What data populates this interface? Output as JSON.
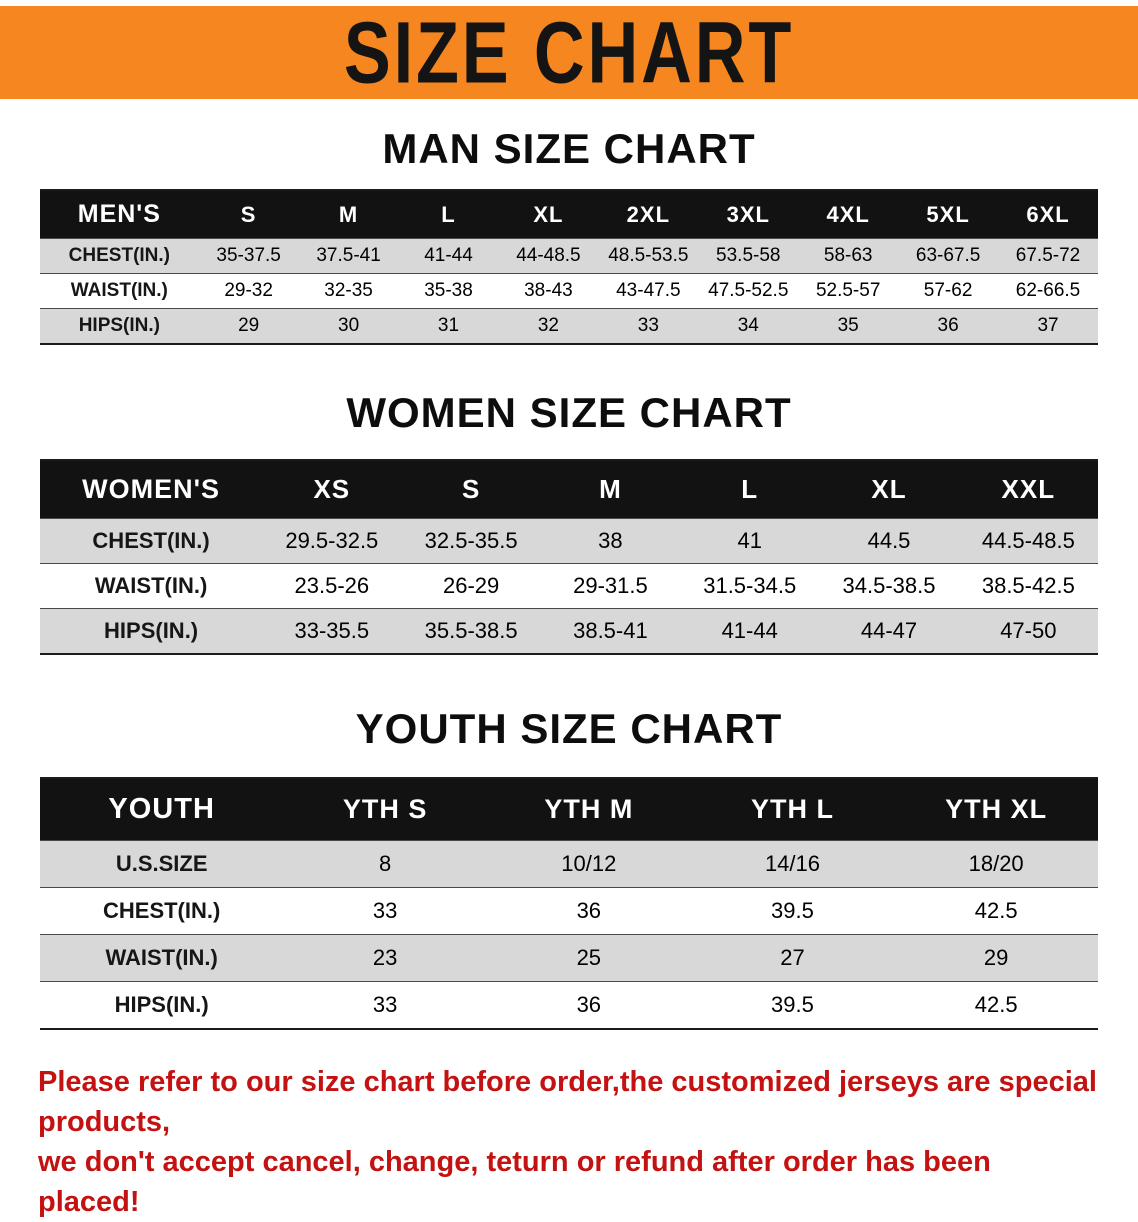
{
  "banner": {
    "title": "SIZE CHART"
  },
  "colors": {
    "banner_orange": "#f6861f",
    "table_header_black": "#121212",
    "row_stripe_gray": "#d8d8d8",
    "disclaimer_red": "#c41111"
  },
  "sections": [
    {
      "heading": "MAN SIZE CHART",
      "table": {
        "header": [
          "MEN'S",
          "S",
          "M",
          "L",
          "XL",
          "2XL",
          "3XL",
          "4XL",
          "5XL",
          "6XL"
        ],
        "rows": [
          [
            "CHEST(IN.)",
            "35-37.5",
            "37.5-41",
            "41-44",
            "44-48.5",
            "48.5-53.5",
            "53.5-58",
            "58-63",
            "63-67.5",
            "67.5-72"
          ],
          [
            "WAIST(IN.)",
            "29-32",
            "32-35",
            "35-38",
            "38-43",
            "43-47.5",
            "47.5-52.5",
            "52.5-57",
            "57-62",
            "62-66.5"
          ],
          [
            "HIPS(IN.)",
            "29",
            "30",
            "31",
            "32",
            "33",
            "34",
            "35",
            "36",
            "37"
          ]
        ]
      }
    },
    {
      "heading": "WOMEN SIZE CHART",
      "table": {
        "header": [
          "WOMEN'S",
          "XS",
          "S",
          "M",
          "L",
          "XL",
          "XXL"
        ],
        "rows": [
          [
            "CHEST(IN.)",
            "29.5-32.5",
            "32.5-35.5",
            "38",
            "41",
            "44.5",
            "44.5-48.5"
          ],
          [
            "WAIST(IN.)",
            "23.5-26",
            "26-29",
            "29-31.5",
            "31.5-34.5",
            "34.5-38.5",
            "38.5-42.5"
          ],
          [
            "HIPS(IN.)",
            "33-35.5",
            "35.5-38.5",
            "38.5-41",
            "41-44",
            "44-47",
            "47-50"
          ]
        ]
      }
    },
    {
      "heading": "YOUTH SIZE CHART",
      "table": {
        "header": [
          "YOUTH",
          "YTH S",
          "YTH M",
          "YTH L",
          "YTH XL"
        ],
        "rows": [
          [
            "U.S.SIZE",
            "8",
            "10/12",
            "14/16",
            "18/20"
          ],
          [
            "CHEST(IN.)",
            "33",
            "36",
            "39.5",
            "42.5"
          ],
          [
            "WAIST(IN.)",
            "23",
            "25",
            "27",
            "29"
          ],
          [
            "HIPS(IN.)",
            "33",
            "36",
            "39.5",
            "42.5"
          ]
        ]
      }
    }
  ],
  "disclaimer": {
    "line1": "Please refer to our size chart before order,the customized jerseys are special products,",
    "line2": "we don't accept cancel, change, teturn or refund after order has been placed!"
  }
}
